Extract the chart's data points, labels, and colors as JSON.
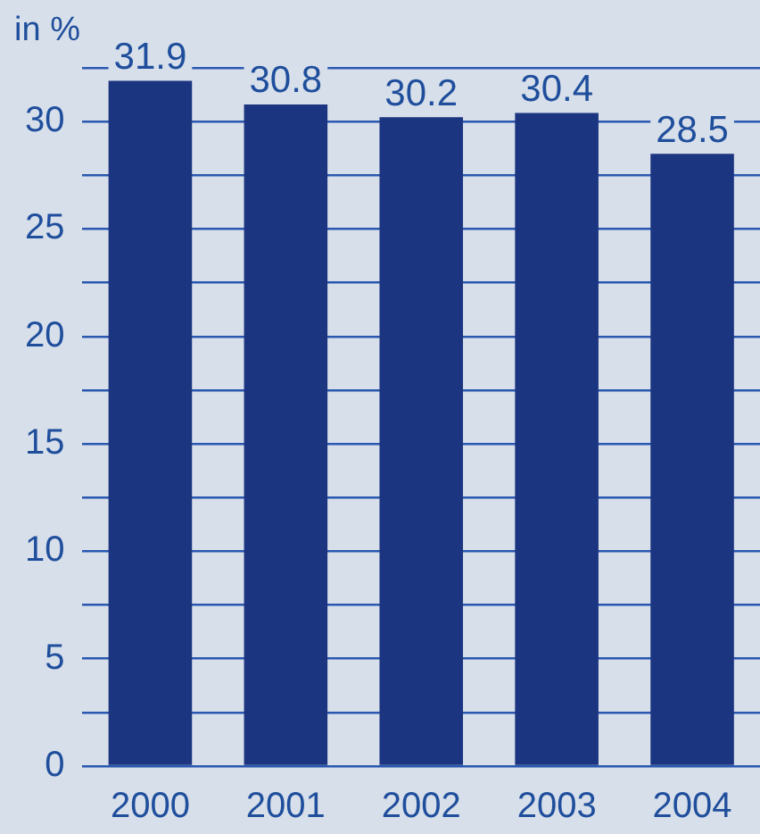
{
  "chart_data": {
    "type": "bar",
    "ylabel": "in %",
    "categories": [
      "2000",
      "2001",
      "2002",
      "2003",
      "2004"
    ],
    "values": [
      31.9,
      30.8,
      30.2,
      30.4,
      28.5
    ],
    "color": "#1c3580",
    "ylim": [
      0,
      32.5
    ],
    "yticks": [
      0,
      {
        "value": 2.5,
        "label": null
      },
      5,
      {
        "value": 7.5,
        "label": null
      },
      10,
      {
        "value": 12.5,
        "label": null
      },
      15,
      {
        "value": 17.5,
        "label": null
      },
      20,
      {
        "value": 22.5,
        "label": null
      },
      25,
      {
        "value": 27.5,
        "label": null
      },
      30,
      {
        "value": 32.5,
        "label": null
      }
    ],
    "grid": "y",
    "data_labels": true
  }
}
